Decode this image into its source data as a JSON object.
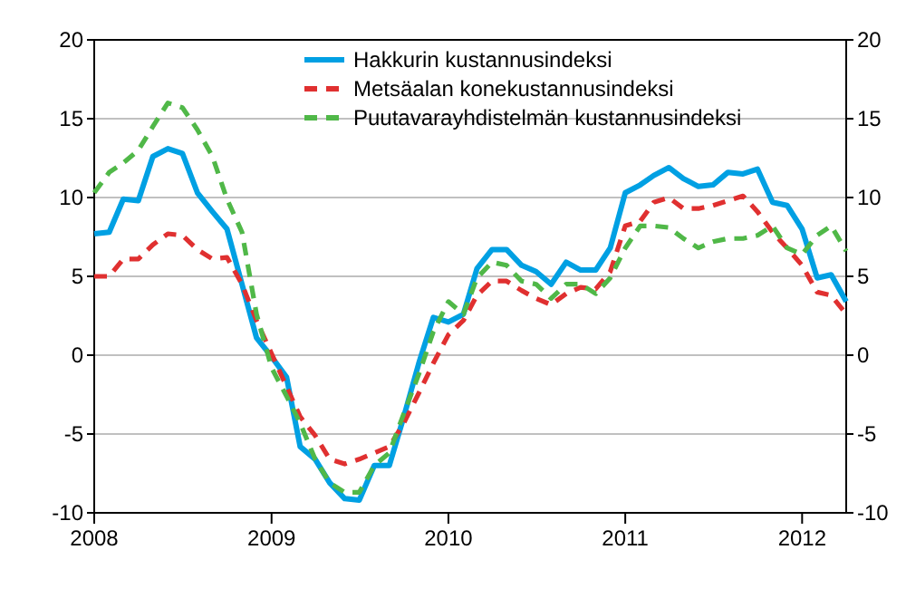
{
  "chart_data": {
    "type": "line",
    "x": [
      "2008-01",
      "2008-02",
      "2008-03",
      "2008-04",
      "2008-05",
      "2008-06",
      "2008-07",
      "2008-08",
      "2008-09",
      "2008-10",
      "2008-11",
      "2008-12",
      "2009-01",
      "2009-02",
      "2009-03",
      "2009-04",
      "2009-05",
      "2009-06",
      "2009-07",
      "2009-08",
      "2009-09",
      "2009-10",
      "2009-11",
      "2009-12",
      "2010-01",
      "2010-02",
      "2010-03",
      "2010-04",
      "2010-05",
      "2010-06",
      "2010-07",
      "2010-08",
      "2010-09",
      "2010-10",
      "2010-11",
      "2010-12",
      "2011-01",
      "2011-02",
      "2011-03",
      "2011-04",
      "2011-05",
      "2011-06",
      "2011-07",
      "2011-08",
      "2011-09",
      "2011-10",
      "2011-11",
      "2011-12",
      "2012-01",
      "2012-02",
      "2012-03",
      "2012-04"
    ],
    "series": [
      {
        "name": "Hakkurin kustannusindeksi",
        "color": "#00a0e3",
        "line_style": "solid",
        "values": [
          7.7,
          7.8,
          9.9,
          9.8,
          12.6,
          13.1,
          12.8,
          10.3,
          9.1,
          8.0,
          4.5,
          1.1,
          -0.1,
          -1.4,
          -5.8,
          -6.6,
          -8.1,
          -9.1,
          -9.2,
          -7.0,
          -7.0,
          -3.9,
          -0.5,
          2.4,
          2.1,
          2.6,
          5.5,
          6.7,
          6.7,
          5.7,
          5.3,
          4.5,
          5.9,
          5.4,
          5.4,
          6.8,
          10.3,
          10.8,
          11.4,
          11.9,
          11.2,
          10.7,
          10.8,
          11.6,
          11.5,
          11.8,
          9.7,
          9.5,
          8.0,
          4.9,
          5.1,
          3.4
        ]
      },
      {
        "name": "Metsäalan konekustannusindeksi",
        "color": "#e03030",
        "line_style": "dashed",
        "values": [
          5.0,
          5.0,
          6.1,
          6.1,
          7.0,
          7.7,
          7.6,
          6.7,
          6.1,
          6.2,
          4.5,
          2.2,
          0.1,
          -2.0,
          -3.9,
          -5.1,
          -6.6,
          -6.9,
          -6.6,
          -6.2,
          -5.8,
          -4.3,
          -2.4,
          -0.5,
          1.3,
          2.2,
          3.8,
          4.7,
          4.7,
          4.1,
          3.6,
          3.2,
          3.9,
          4.3,
          4.2,
          5.3,
          8.2,
          8.5,
          9.7,
          10.0,
          9.3,
          9.3,
          9.5,
          9.8,
          10.1,
          9.1,
          7.8,
          6.8,
          5.7,
          4.0,
          3.8,
          2.6
        ]
      },
      {
        "name": "Puutavarayhdistelmän kustannusindeksi",
        "color": "#50b848",
        "line_style": "dashed",
        "values": [
          10.3,
          11.6,
          12.2,
          13.0,
          14.5,
          16.0,
          15.7,
          14.3,
          12.6,
          9.9,
          7.8,
          2.6,
          -0.8,
          -2.6,
          -4.3,
          -6.6,
          -8.1,
          -8.7,
          -8.7,
          -7.0,
          -6.2,
          -3.7,
          -1.2,
          1.5,
          3.4,
          2.6,
          4.9,
          5.9,
          5.7,
          4.7,
          4.5,
          3.6,
          4.5,
          4.5,
          3.9,
          4.9,
          6.8,
          8.2,
          8.2,
          8.1,
          7.4,
          6.8,
          7.2,
          7.4,
          7.4,
          7.6,
          8.2,
          6.8,
          6.4,
          7.6,
          8.2,
          6.6
        ]
      }
    ],
    "xlim": [
      "2008-01",
      "2012-04"
    ],
    "xticks": [
      {
        "value": "2008-01",
        "label": "2008"
      },
      {
        "value": "2009-01",
        "label": "2009"
      },
      {
        "value": "2010-01",
        "label": "2010"
      },
      {
        "value": "2011-01",
        "label": "2011"
      },
      {
        "value": "2012-01",
        "label": "2012"
      }
    ],
    "ylim": [
      -10,
      20
    ],
    "yticks": [
      -10,
      -5,
      0,
      5,
      10,
      15,
      20
    ],
    "y2lim": [
      -10,
      20
    ],
    "y2ticks": [
      -10,
      -5,
      0,
      5,
      10,
      15,
      20
    ],
    "grid": "y",
    "legend": "top",
    "marker": "none"
  }
}
